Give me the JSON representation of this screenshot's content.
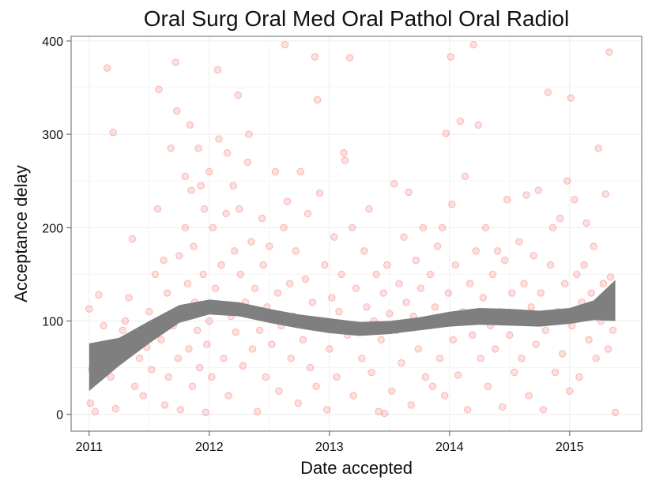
{
  "chart_data": {
    "type": "scatter",
    "title": "Oral Surg Oral Med Oral Pathol Oral Radiol",
    "xlabel": "Date accepted",
    "ylabel": "Acceptance delay",
    "xlim": [
      2010.85,
      2015.6
    ],
    "ylim": [
      -18,
      405
    ],
    "x_ticks": [
      2011,
      2012,
      2013,
      2014,
      2015
    ],
    "x_tick_labels": [
      "2011",
      "2012",
      "2013",
      "2014",
      "2015"
    ],
    "y_ticks": [
      0,
      100,
      200,
      300,
      400
    ],
    "y_tick_labels": [
      "0",
      "100",
      "200",
      "300",
      "400"
    ],
    "grid": true,
    "series": [
      {
        "kind": "points",
        "color": "#ff4d4d",
        "points": [
          [
            2011.0,
            113
          ],
          [
            2011.01,
            12
          ],
          [
            2011.02,
            48
          ],
          [
            2011.05,
            3
          ],
          [
            2011.08,
            128
          ],
          [
            2011.1,
            56
          ],
          [
            2011.12,
            95
          ],
          [
            2011.15,
            371
          ],
          [
            2011.18,
            40
          ],
          [
            2011.2,
            302
          ],
          [
            2011.22,
            6
          ],
          [
            2011.25,
            75
          ],
          [
            2011.28,
            90
          ],
          [
            2011.3,
            100
          ],
          [
            2011.33,
            125
          ],
          [
            2011.36,
            188
          ],
          [
            2011.38,
            30
          ],
          [
            2011.42,
            60
          ],
          [
            2011.45,
            20
          ],
          [
            2011.48,
            72
          ],
          [
            2011.5,
            110
          ],
          [
            2011.52,
            48
          ],
          [
            2011.55,
            150
          ],
          [
            2011.57,
            220
          ],
          [
            2011.58,
            348
          ],
          [
            2011.6,
            80
          ],
          [
            2011.62,
            165
          ],
          [
            2011.63,
            10
          ],
          [
            2011.65,
            130
          ],
          [
            2011.66,
            40
          ],
          [
            2011.68,
            285
          ],
          [
            2011.7,
            95
          ],
          [
            2011.72,
            377
          ],
          [
            2011.73,
            325
          ],
          [
            2011.74,
            60
          ],
          [
            2011.75,
            170
          ],
          [
            2011.76,
            5
          ],
          [
            2011.78,
            110
          ],
          [
            2011.8,
            255
          ],
          [
            2011.8,
            200
          ],
          [
            2011.82,
            140
          ],
          [
            2011.83,
            70
          ],
          [
            2011.84,
            310
          ],
          [
            2011.85,
            240
          ],
          [
            2011.86,
            30
          ],
          [
            2011.87,
            180
          ],
          [
            2011.88,
            120
          ],
          [
            2011.9,
            90
          ],
          [
            2011.91,
            285
          ],
          [
            2011.92,
            50
          ],
          [
            2011.93,
            245
          ],
          [
            2011.95,
            150
          ],
          [
            2011.96,
            220
          ],
          [
            2011.97,
            2
          ],
          [
            2011.98,
            75
          ],
          [
            2012.0,
            260
          ],
          [
            2012.0,
            100
          ],
          [
            2012.02,
            40
          ],
          [
            2012.03,
            200
          ],
          [
            2012.05,
            135
          ],
          [
            2012.07,
            369
          ],
          [
            2012.08,
            295
          ],
          [
            2012.1,
            160
          ],
          [
            2012.11,
            110
          ],
          [
            2012.12,
            60
          ],
          [
            2012.14,
            215
          ],
          [
            2012.15,
            280
          ],
          [
            2012.16,
            20
          ],
          [
            2012.18,
            105
          ],
          [
            2012.2,
            245
          ],
          [
            2012.21,
            175
          ],
          [
            2012.22,
            88
          ],
          [
            2012.24,
            342
          ],
          [
            2012.25,
            220
          ],
          [
            2012.26,
            150
          ],
          [
            2012.28,
            52
          ],
          [
            2012.3,
            120
          ],
          [
            2012.32,
            270
          ],
          [
            2012.33,
            300
          ],
          [
            2012.35,
            185
          ],
          [
            2012.36,
            70
          ],
          [
            2012.38,
            135
          ],
          [
            2012.4,
            3
          ],
          [
            2012.42,
            90
          ],
          [
            2012.44,
            210
          ],
          [
            2012.45,
            160
          ],
          [
            2012.47,
            40
          ],
          [
            2012.48,
            115
          ],
          [
            2012.5,
            180
          ],
          [
            2012.52,
            75
          ],
          [
            2012.55,
            260
          ],
          [
            2012.57,
            130
          ],
          [
            2012.58,
            25
          ],
          [
            2012.6,
            95
          ],
          [
            2012.62,
            200
          ],
          [
            2012.63,
            396
          ],
          [
            2012.65,
            228
          ],
          [
            2012.67,
            140
          ],
          [
            2012.68,
            60
          ],
          [
            2012.7,
            105
          ],
          [
            2012.72,
            175
          ],
          [
            2012.74,
            12
          ],
          [
            2012.76,
            260
          ],
          [
            2012.78,
            80
          ],
          [
            2012.8,
            145
          ],
          [
            2012.82,
            215
          ],
          [
            2012.84,
            50
          ],
          [
            2012.86,
            120
          ],
          [
            2012.88,
            383
          ],
          [
            2012.89,
            30
          ],
          [
            2012.9,
            337
          ],
          [
            2012.92,
            237
          ],
          [
            2012.94,
            100
          ],
          [
            2012.96,
            160
          ],
          [
            2012.98,
            5
          ],
          [
            2013.0,
            70
          ],
          [
            2013.02,
            125
          ],
          [
            2013.04,
            190
          ],
          [
            2013.06,
            40
          ],
          [
            2013.08,
            110
          ],
          [
            2013.1,
            150
          ],
          [
            2013.12,
            280
          ],
          [
            2013.13,
            272
          ],
          [
            2013.15,
            85
          ],
          [
            2013.17,
            382
          ],
          [
            2013.19,
            200
          ],
          [
            2013.2,
            20
          ],
          [
            2013.22,
            135
          ],
          [
            2013.25,
            95
          ],
          [
            2013.27,
            60
          ],
          [
            2013.29,
            175
          ],
          [
            2013.31,
            115
          ],
          [
            2013.33,
            220
          ],
          [
            2013.35,
            45
          ],
          [
            2013.37,
            100
          ],
          [
            2013.39,
            150
          ],
          [
            2013.41,
            3
          ],
          [
            2013.43,
            80
          ],
          [
            2013.45,
            130
          ],
          [
            2013.46,
            1
          ],
          [
            2013.48,
            160
          ],
          [
            2013.5,
            108
          ],
          [
            2013.52,
            25
          ],
          [
            2013.54,
            247
          ],
          [
            2013.56,
            90
          ],
          [
            2013.58,
            140
          ],
          [
            2013.6,
            55
          ],
          [
            2013.62,
            190
          ],
          [
            2013.64,
            120
          ],
          [
            2013.66,
            238
          ],
          [
            2013.68,
            10
          ],
          [
            2013.7,
            105
          ],
          [
            2013.72,
            165
          ],
          [
            2013.74,
            70
          ],
          [
            2013.76,
            135
          ],
          [
            2013.78,
            200
          ],
          [
            2013.8,
            40
          ],
          [
            2013.82,
            95
          ],
          [
            2013.84,
            150
          ],
          [
            2013.86,
            30
          ],
          [
            2013.88,
            115
          ],
          [
            2013.9,
            180
          ],
          [
            2013.92,
            60
          ],
          [
            2013.94,
            200
          ],
          [
            2013.96,
            20
          ],
          [
            2013.97,
            301
          ],
          [
            2013.99,
            130
          ],
          [
            2014.01,
            383
          ],
          [
            2014.02,
            225
          ],
          [
            2014.03,
            80
          ],
          [
            2014.05,
            160
          ],
          [
            2014.07,
            42
          ],
          [
            2014.09,
            314
          ],
          [
            2014.11,
            110
          ],
          [
            2014.13,
            255
          ],
          [
            2014.15,
            5
          ],
          [
            2014.17,
            140
          ],
          [
            2014.19,
            85
          ],
          [
            2014.2,
            396
          ],
          [
            2014.22,
            175
          ],
          [
            2014.24,
            310
          ],
          [
            2014.26,
            60
          ],
          [
            2014.28,
            125
          ],
          [
            2014.3,
            200
          ],
          [
            2014.32,
            30
          ],
          [
            2014.34,
            95
          ],
          [
            2014.36,
            150
          ],
          [
            2014.38,
            70
          ],
          [
            2014.4,
            175
          ],
          [
            2014.42,
            110
          ],
          [
            2014.44,
            8
          ],
          [
            2014.46,
            165
          ],
          [
            2014.48,
            230
          ],
          [
            2014.5,
            85
          ],
          [
            2014.52,
            130
          ],
          [
            2014.54,
            45
          ],
          [
            2014.56,
            100
          ],
          [
            2014.58,
            185
          ],
          [
            2014.6,
            60
          ],
          [
            2014.62,
            140
          ],
          [
            2014.64,
            235
          ],
          [
            2014.66,
            20
          ],
          [
            2014.68,
            115
          ],
          [
            2014.7,
            170
          ],
          [
            2014.72,
            75
          ],
          [
            2014.74,
            240
          ],
          [
            2014.76,
            130
          ],
          [
            2014.78,
            5
          ],
          [
            2014.8,
            90
          ],
          [
            2014.82,
            345
          ],
          [
            2014.84,
            160
          ],
          [
            2014.86,
            200
          ],
          [
            2014.88,
            45
          ],
          [
            2014.9,
            110
          ],
          [
            2014.92,
            210
          ],
          [
            2014.94,
            65
          ],
          [
            2014.96,
            140
          ],
          [
            2014.98,
            250
          ],
          [
            2015.0,
            25
          ],
          [
            2015.01,
            339
          ],
          [
            2015.02,
            95
          ],
          [
            2015.04,
            230
          ],
          [
            2015.06,
            150
          ],
          [
            2015.08,
            40
          ],
          [
            2015.1,
            120
          ],
          [
            2015.12,
            160
          ],
          [
            2015.14,
            205
          ],
          [
            2015.16,
            80
          ],
          [
            2015.18,
            130
          ],
          [
            2015.2,
            180
          ],
          [
            2015.22,
            60
          ],
          [
            2015.24,
            285
          ],
          [
            2015.26,
            100
          ],
          [
            2015.28,
            140
          ],
          [
            2015.3,
            236
          ],
          [
            2015.32,
            70
          ],
          [
            2015.33,
            388
          ],
          [
            2015.34,
            147
          ],
          [
            2015.36,
            90
          ],
          [
            2015.38,
            2
          ]
        ]
      },
      {
        "kind": "band",
        "color": "#7f7f7f",
        "x": [
          2011.0,
          2011.25,
          2011.5,
          2011.75,
          2012.0,
          2012.25,
          2012.5,
          2012.75,
          2013.0,
          2013.25,
          2013.5,
          2013.75,
          2014.0,
          2014.25,
          2014.5,
          2014.75,
          2015.0,
          2015.2,
          2015.38
        ],
        "lower": [
          25,
          52,
          76,
          98,
          107,
          105,
          98,
          92,
          87,
          84,
          86,
          90,
          94,
          96,
          95,
          94,
          97,
          101,
          100
        ],
        "upper": [
          76,
          82,
          100,
          117,
          123,
          120,
          113,
          107,
          103,
          99,
          100,
          104,
          110,
          114,
          113,
          111,
          114,
          122,
          144
        ]
      }
    ]
  }
}
